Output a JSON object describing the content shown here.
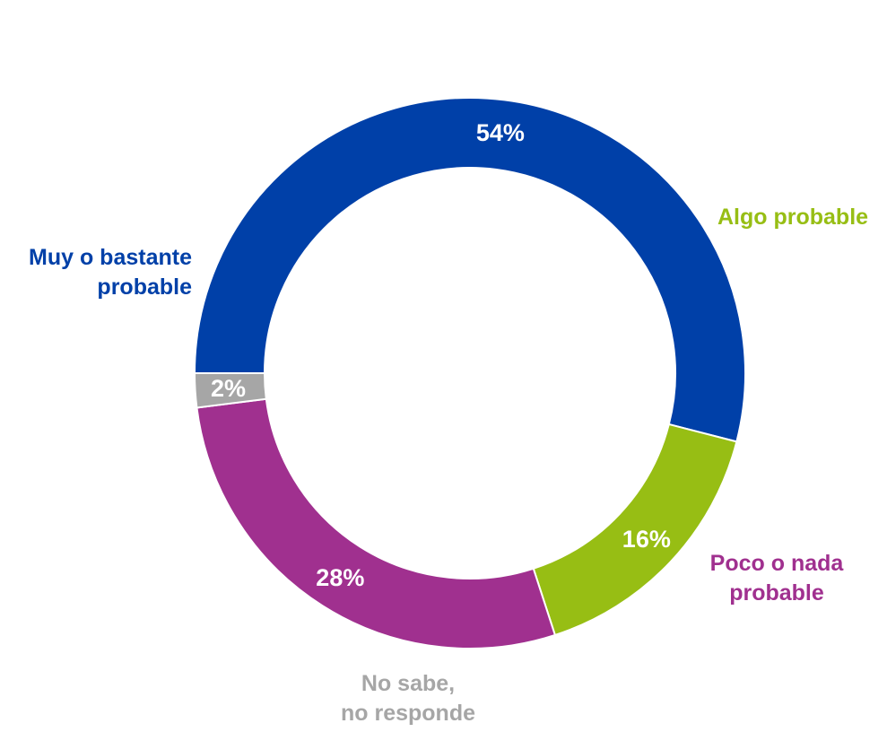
{
  "chart_data": {
    "type": "pie",
    "variant": "donut",
    "start_angle_deg": 180,
    "direction": "clockwise",
    "slices": [
      {
        "label_lines": [
          "Muy o bastante",
          "probable"
        ],
        "value": 54,
        "value_label": "54%",
        "color": "#0040A8"
      },
      {
        "label_lines": [
          "Algo probable"
        ],
        "value": 16,
        "value_label": "16%",
        "color": "#97BE14"
      },
      {
        "label_lines": [
          "Poco o nada",
          "probable"
        ],
        "value": 28,
        "value_label": "28%",
        "color": "#A0308F"
      },
      {
        "label_lines": [
          "No sabe,",
          "no responde"
        ],
        "value": 2,
        "value_label": "2%",
        "color": "#A6A6A6"
      }
    ]
  }
}
